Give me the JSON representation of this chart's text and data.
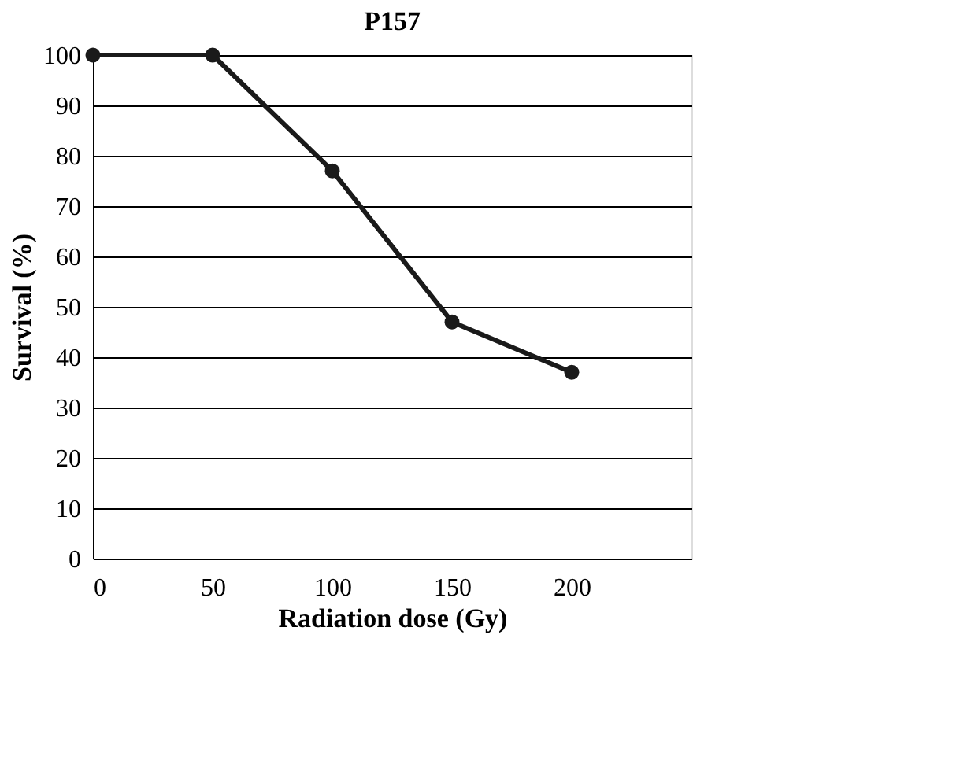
{
  "chart_data": {
    "type": "line",
    "title": "P157",
    "xlabel": "Radiation dose (Gy)",
    "ylabel": "Survival (%)",
    "x": [
      0,
      50,
      100,
      150,
      200
    ],
    "series": [
      {
        "color": "#1a1a1a",
        "values": [
          100,
          100,
          77,
          47,
          37
        ]
      }
    ],
    "xlim": [
      0,
      250
    ],
    "xticks": [
      0,
      50,
      100,
      150,
      200
    ],
    "ylim": [
      0,
      100
    ],
    "yticks": [
      0,
      10,
      20,
      30,
      40,
      50,
      60,
      70,
      80,
      90,
      100
    ],
    "grid": "y",
    "marker": "circle",
    "line_style": "solid"
  }
}
